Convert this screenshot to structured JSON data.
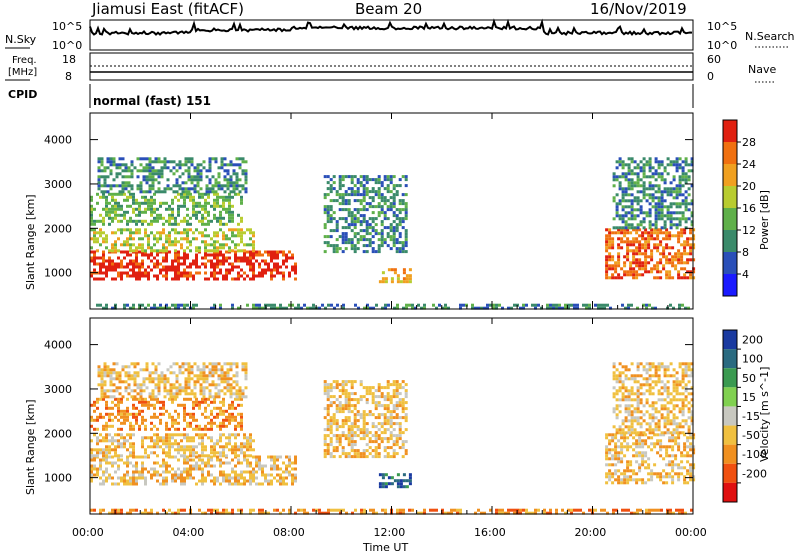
{
  "header": {
    "station": "Jiamusi East (fitACF)",
    "beam": "Beam 20",
    "date": "16/Nov/2019"
  },
  "noise_panel": {
    "left_label": "N.Sky",
    "left_ticks": [
      "10^5",
      "10^0"
    ],
    "right_label": "N.Search",
    "right_ticks": [
      "10^5",
      "10^0"
    ]
  },
  "freq_panel": {
    "left_label_line1": "Freq.",
    "left_label_line2": "[MHz]",
    "left_ticks": [
      "18",
      "8"
    ],
    "right_label": "Nave",
    "right_ticks": [
      "60",
      "0"
    ]
  },
  "cpid_panel": {
    "label": "CPID",
    "mode": "normal (fast) 151"
  },
  "axes": {
    "xlabel": "Time UT",
    "x_ticks": [
      "00:00",
      "04:00",
      "08:00",
      "12:00",
      "16:00",
      "20:00",
      "00:00"
    ],
    "ylabel": "Slant Range [km]",
    "y_ticks": [
      "1000",
      "2000",
      "3000",
      "4000"
    ]
  },
  "power_scale": {
    "label": "Power [dB]",
    "ticks": [
      "4",
      "8",
      "12",
      "16",
      "20",
      "24",
      "28"
    ],
    "colors": [
      "#1a1aff",
      "#2a4fb8",
      "#3a8a6a",
      "#5fb04a",
      "#b8cc30",
      "#f0a020",
      "#f07010",
      "#e02010"
    ]
  },
  "velocity_scale": {
    "label": "Velocity [m s^-1]",
    "ticks": [
      "200",
      "100",
      "50",
      "15",
      "-15",
      "-50",
      "-100",
      "-200"
    ],
    "colors": [
      "#1a3aa0",
      "#2a6a80",
      "#3a9a50",
      "#80d050",
      "#c8c8c0",
      "#f0c040",
      "#f09020",
      "#f05010",
      "#e01010"
    ]
  },
  "chart_data": [
    {
      "type": "heatmap",
      "title": "Power",
      "xlabel": "Time UT",
      "ylabel": "Slant Range [km]",
      "xlim_hours": [
        0,
        24
      ],
      "ylim_km": [
        180,
        4600
      ],
      "colorbar": "Power [dB]",
      "clim": [
        0,
        30
      ],
      "echo_regions": [
        {
          "t0": 0.0,
          "t1": 8.2,
          "r0": 850,
          "r1": 1500,
          "level": "28"
        },
        {
          "t0": 0.0,
          "t1": 6.5,
          "r0": 1500,
          "r1": 2000,
          "level": "16"
        },
        {
          "t0": 0.0,
          "t1": 6.0,
          "r0": 2100,
          "r1": 2800,
          "level": "12"
        },
        {
          "t0": 0.3,
          "t1": 6.2,
          "r0": 2800,
          "r1": 3600,
          "level": "8"
        },
        {
          "t0": 9.3,
          "t1": 12.6,
          "r0": 1500,
          "r1": 3200,
          "level": "8"
        },
        {
          "t0": 11.5,
          "t1": 12.8,
          "r0": 780,
          "r1": 1100,
          "level": "20"
        },
        {
          "t0": 20.5,
          "t1": 24.0,
          "r0": 900,
          "r1": 2000,
          "level": "24"
        },
        {
          "t0": 20.8,
          "t1": 24.0,
          "r0": 2000,
          "r1": 3600,
          "level": "8"
        },
        {
          "t0": 0.0,
          "t1": 24.0,
          "r0": 180,
          "r1": 300,
          "level": "8"
        }
      ]
    },
    {
      "type": "heatmap",
      "title": "Velocity",
      "xlabel": "Time UT",
      "ylabel": "Slant Range [km]",
      "xlim_hours": [
        0,
        24
      ],
      "ylim_km": [
        180,
        4600
      ],
      "colorbar": "Velocity [m s^-1]",
      "clim": [
        -250,
        250
      ],
      "echo_regions": [
        {
          "t0": 0.0,
          "t1": 8.2,
          "r0": 850,
          "r1": 1500,
          "level": "-15"
        },
        {
          "t0": 0.0,
          "t1": 6.5,
          "r0": 1500,
          "r1": 2000,
          "level": "-15"
        },
        {
          "t0": 0.0,
          "t1": 6.0,
          "r0": 2100,
          "r1": 2800,
          "level": "-50"
        },
        {
          "t0": 0.3,
          "t1": 6.2,
          "r0": 2800,
          "r1": 3600,
          "level": "-15"
        },
        {
          "t0": 9.3,
          "t1": 12.6,
          "r0": 1500,
          "r1": 3200,
          "level": "-15"
        },
        {
          "t0": 11.5,
          "t1": 12.8,
          "r0": 780,
          "r1": 1100,
          "level": "200"
        },
        {
          "t0": 20.5,
          "t1": 24.0,
          "r0": 900,
          "r1": 2000,
          "level": "-15"
        },
        {
          "t0": 20.8,
          "t1": 24.0,
          "r0": 2000,
          "r1": 3600,
          "level": "-15"
        },
        {
          "t0": 0.0,
          "t1": 24.0,
          "r0": 180,
          "r1": 300,
          "level": "-50"
        }
      ]
    }
  ]
}
